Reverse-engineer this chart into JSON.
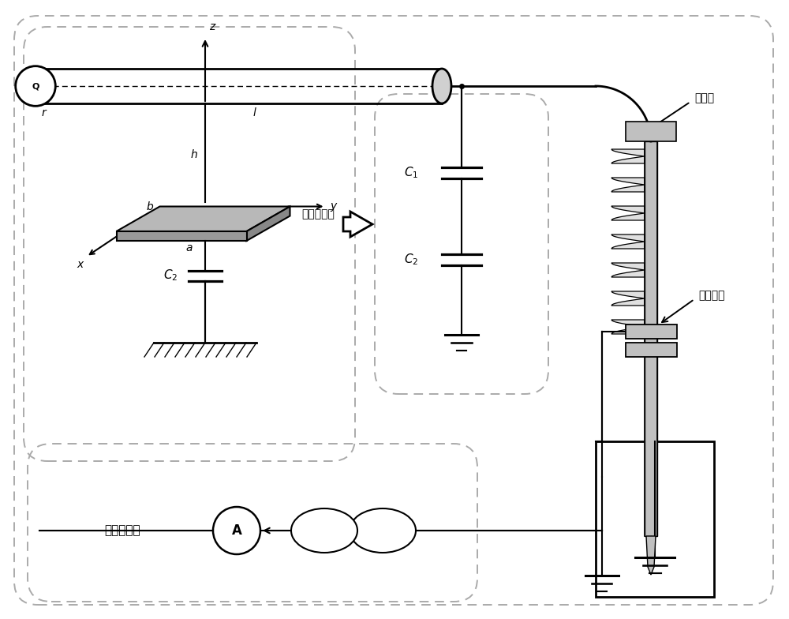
{
  "bg_color": "#ffffff",
  "line_color": "#000000",
  "dash_color": "#aaaaaa",
  "label_r": "r",
  "label_l": "l",
  "label_h": "h",
  "label_a": "a",
  "label_b": "b",
  "label_x": "x",
  "label_y": "y",
  "label_z": "z",
  "label_plate": "感应金属板",
  "label_bushing_end": "套管末屏",
  "label_conductor": "导电杆",
  "label_current_transformer": "电流互感器",
  "label_A": "A",
  "fig_w": 10.0,
  "fig_h": 7.84,
  "dpi": 100,
  "xlim": [
    0,
    10
  ],
  "ylim": [
    0,
    7.84
  ]
}
